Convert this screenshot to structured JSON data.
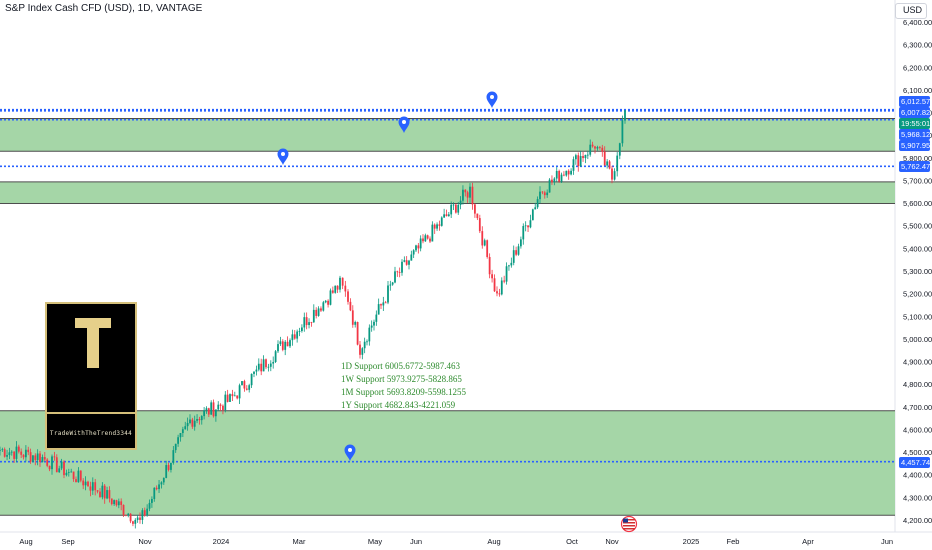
{
  "header": {
    "title": "S&P Index Cash CFD (USD), 1D, VANTAGE",
    "currency": "USD"
  },
  "logo": {
    "letter": "T",
    "handle": "TradeWithTheTrend3344"
  },
  "supports": [
    "1D Support 6005.6772-5987.463",
    "1W Support 5973.9275-5828.865",
    "1M Support 5693.8209-5598.1255",
    "1Y Support 4682.843-4221.059"
  ],
  "price_tags": [
    {
      "label": "6,012.57",
      "color": "#2962ff"
    },
    {
      "label": "6,007.82",
      "color": "#2962ff"
    },
    {
      "label": "19:55:01",
      "color": "#089981"
    },
    {
      "label": "5,968.12",
      "color": "#2962ff"
    },
    {
      "label": "5,907.95",
      "color": "#2962ff"
    },
    {
      "label": "5,762.47",
      "color": "#2962ff"
    },
    {
      "label": "4,457.74",
      "color": "#2962ff"
    }
  ],
  "colors": {
    "zone_fill": "#a5d6a7",
    "zone_border": "#4d4d4d",
    "level_line": "#2962ff",
    "up_candle": "#089981",
    "down_candle": "#f23645",
    "marker": "#2962ff"
  },
  "icons": [
    "location-pin-icon",
    "us-flag-icon"
  ],
  "chart_data": {
    "type": "candlestick",
    "symbol": "S&P Index Cash CFD (USD)",
    "timeframe": "1D",
    "ylim": [
      4180,
      6480
    ],
    "y_ticks": [
      6400,
      6300,
      6200,
      6100,
      6000,
      5900,
      5800,
      5700,
      5600,
      5500,
      5400,
      5300,
      5200,
      5100,
      5000,
      4900,
      4800,
      4700,
      4600,
      4500,
      4400,
      4300,
      4200
    ],
    "x_ticks": [
      "Aug",
      "Sep",
      "Nov",
      "2024",
      "Mar",
      "May",
      "Jun",
      "Aug",
      "Oct",
      "Nov",
      "2025",
      "Feb",
      "Apr",
      "Jun"
    ],
    "zones": [
      {
        "label": "1D Support",
        "low": 5987.463,
        "high": 6005.6772
      },
      {
        "label": "1W Support",
        "low": 5828.865,
        "high": 5973.9275
      },
      {
        "label": "1M Support",
        "low": 5598.1255,
        "high": 5693.8209
      },
      {
        "label": "1Y Support",
        "low": 4221.059,
        "high": 4682.843
      }
    ],
    "levels": [
      6012.57,
      6007.82,
      5968.12,
      5762.47,
      4457.74
    ],
    "path": [
      {
        "x": "Aug",
        "y": 4510
      },
      {
        "x": "Sep",
        "y": 4480
      },
      {
        "x": "Oct",
        "y": 4330
      },
      {
        "x": "Nov",
        "y": 4190
      },
      {
        "x": "Dec",
        "y": 4640
      },
      {
        "x": "2024",
        "y": 4730
      },
      {
        "x": "Feb",
        "y": 5010
      },
      {
        "x": "Mar",
        "y": 5240
      },
      {
        "x": "Apr",
        "y": 5180
      },
      {
        "x": "Apr",
        "y": 4960
      },
      {
        "x": "May",
        "y": 5270
      },
      {
        "x": "Jun",
        "y": 5460
      },
      {
        "x": "Jul",
        "y": 5660
      },
      {
        "x": "Aug",
        "y": 5190
      },
      {
        "x": "Sep",
        "y": 5650
      },
      {
        "x": "Oct",
        "y": 5860
      },
      {
        "x": "Nov",
        "y": 5710
      },
      {
        "x": "Nov",
        "y": 6010
      }
    ]
  }
}
